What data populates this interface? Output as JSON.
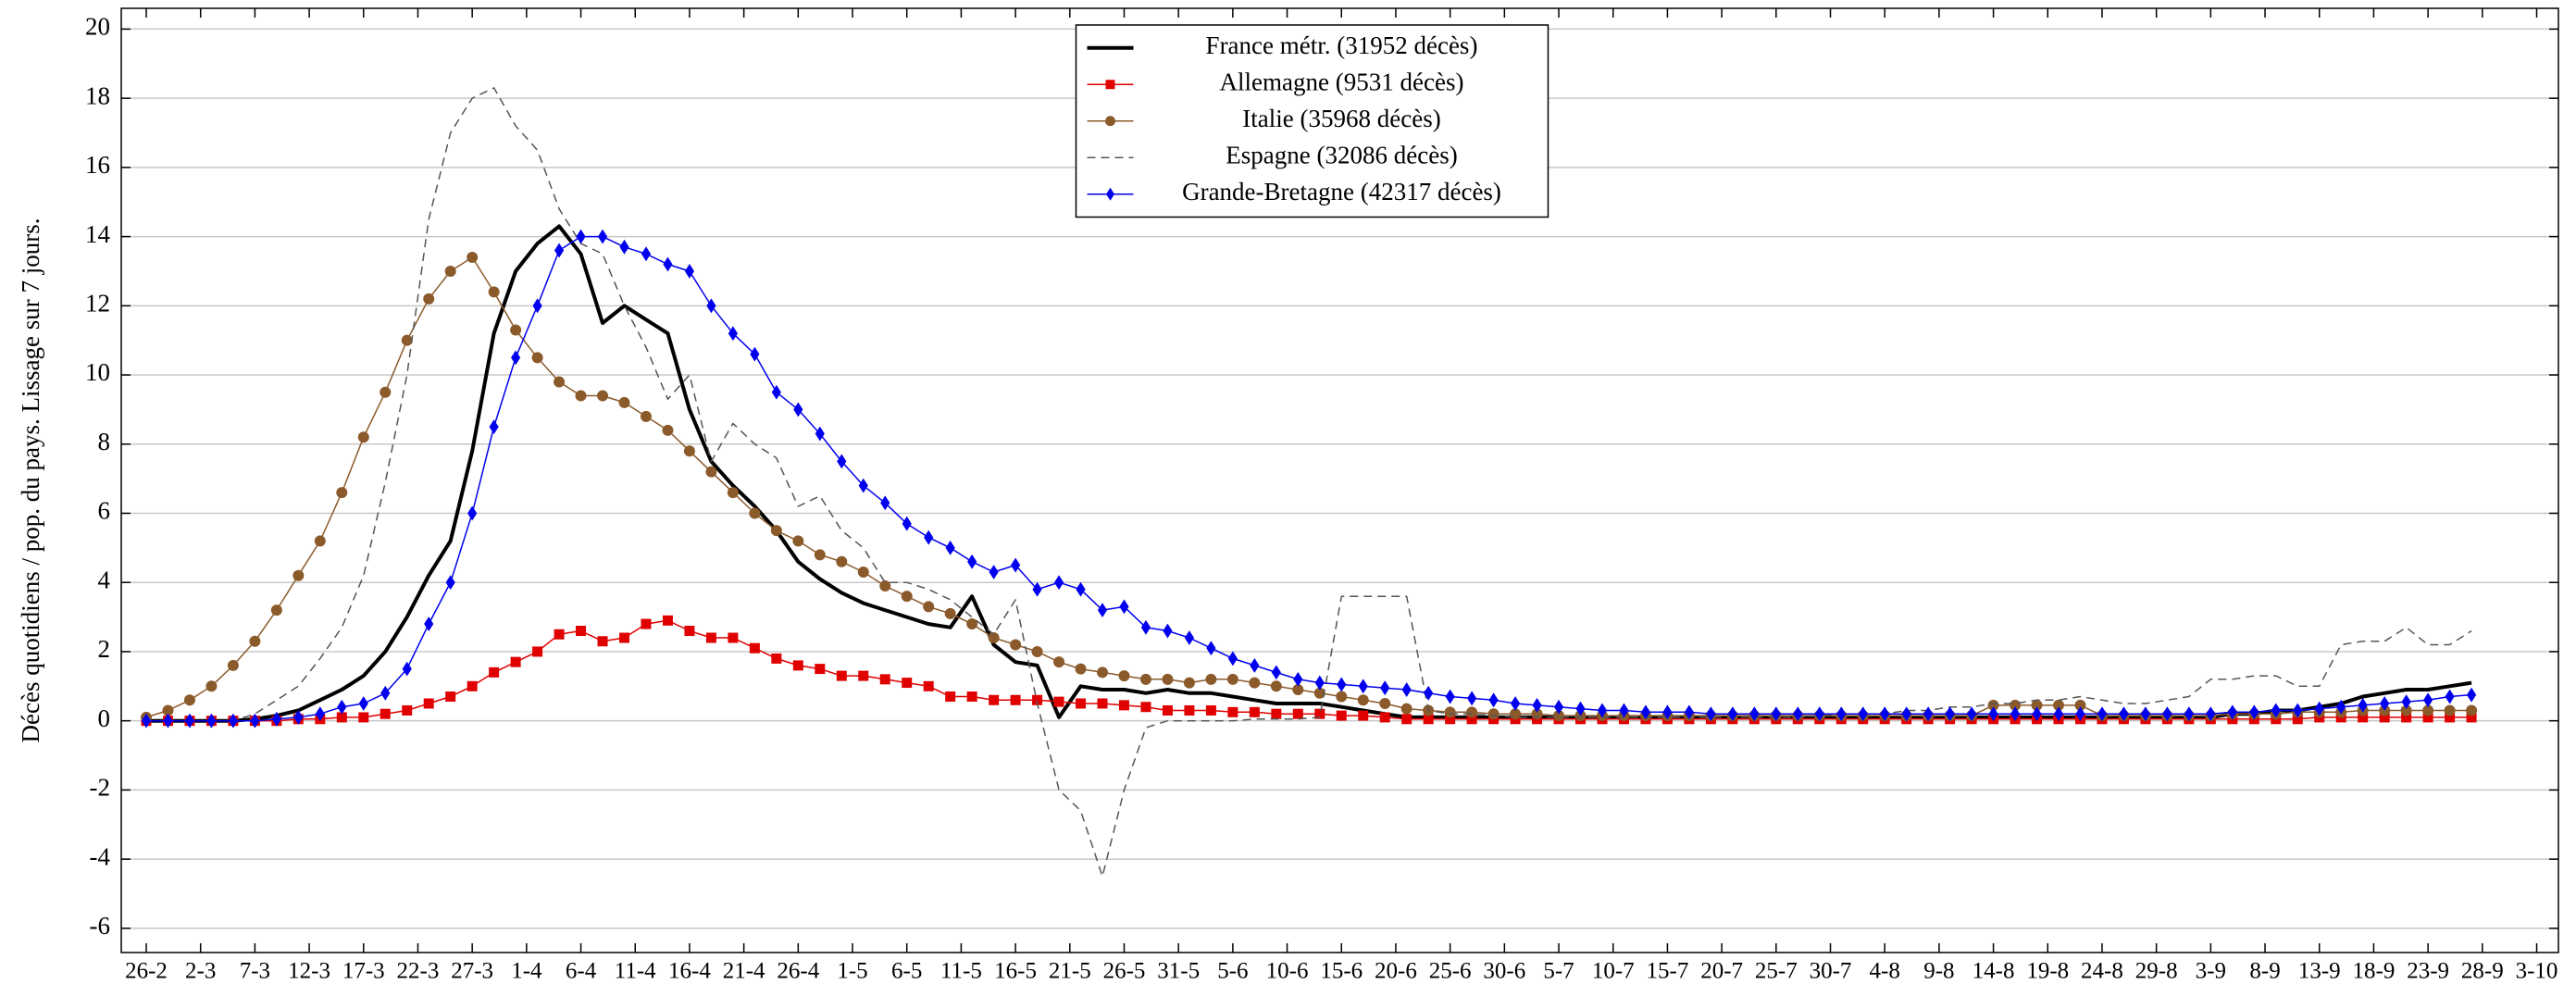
{
  "chart_data": {
    "type": "line",
    "y_label": "Décès quotidiens / pop. du pays. Lissage sur 7 jours.",
    "x": [
      0,
      2,
      4,
      6,
      8,
      10,
      12,
      14,
      16,
      18,
      20,
      22,
      24,
      26,
      28,
      30,
      32,
      34,
      36,
      38,
      40,
      42,
      44,
      46,
      48,
      50,
      52,
      54,
      56,
      58,
      60,
      62,
      64,
      66,
      68,
      70,
      72,
      74,
      76,
      78,
      80,
      82,
      84,
      86,
      88,
      90,
      92,
      94,
      96,
      98,
      100,
      102,
      104,
      106,
      108,
      110,
      112,
      114,
      116,
      118,
      120,
      122,
      124,
      126,
      128,
      130,
      132,
      134,
      136,
      138,
      140,
      142,
      144,
      146,
      148,
      150,
      152,
      154,
      156,
      158,
      160,
      162,
      164,
      166,
      168,
      170,
      172,
      174,
      176,
      178,
      180,
      182,
      184,
      186,
      188,
      190,
      192,
      194,
      196,
      198,
      200,
      202,
      204,
      206,
      208,
      210,
      212,
      214
    ],
    "series": [
      {
        "name": "France métr. (31952 décès)",
        "color": "#000000",
        "marker": "none",
        "line_style": "solid",
        "values": [
          0,
          0,
          0,
          0,
          0,
          0.05,
          0.15,
          0.3,
          0.6,
          0.9,
          1.3,
          2.0,
          3.0,
          4.2,
          5.2,
          7.8,
          11.2,
          13.0,
          13.8,
          14.3,
          13.5,
          11.5,
          12.0,
          11.6,
          11.2,
          9.0,
          7.5,
          6.8,
          6.2,
          5.5,
          4.6,
          4.1,
          3.7,
          3.4,
          3.2,
          3.0,
          2.8,
          2.7,
          3.6,
          2.2,
          1.7,
          1.6,
          0.1,
          1.0,
          0.9,
          0.9,
          0.8,
          0.9,
          0.8,
          0.8,
          0.7,
          0.6,
          0.5,
          0.5,
          0.5,
          0.4,
          0.3,
          0.2,
          0.1,
          0.1,
          0.1,
          0.1,
          0.1,
          0.1,
          0.1,
          0.1,
          0.1,
          0.1,
          0.1,
          0.1,
          0.1,
          0.1,
          0.1,
          0.1,
          0.1,
          0.1,
          0.1,
          0.1,
          0.1,
          0.1,
          0.1,
          0.1,
          0.1,
          0.1,
          0.1,
          0.1,
          0.1,
          0.1,
          0.1,
          0.1,
          0.1,
          0.1,
          0.1,
          0.1,
          0.1,
          0.1,
          0.2,
          0.2,
          0.3,
          0.3,
          0.4,
          0.5,
          0.7,
          0.8,
          0.9,
          0.9,
          1.0,
          1.1
        ]
      },
      {
        "name": "Allemagne (9531 décès)",
        "color": "#e00000",
        "marker": "square",
        "line_style": "solid",
        "values": [
          0,
          0,
          0,
          0,
          0,
          0,
          0,
          0.05,
          0.05,
          0.1,
          0.1,
          0.2,
          0.3,
          0.5,
          0.7,
          1.0,
          1.4,
          1.7,
          2.0,
          2.5,
          2.6,
          2.3,
          2.4,
          2.8,
          2.9,
          2.6,
          2.4,
          2.4,
          2.1,
          1.8,
          1.6,
          1.5,
          1.3,
          1.3,
          1.2,
          1.1,
          1.0,
          0.7,
          0.7,
          0.6,
          0.6,
          0.6,
          0.55,
          0.5,
          0.5,
          0.45,
          0.4,
          0.3,
          0.3,
          0.3,
          0.25,
          0.25,
          0.2,
          0.2,
          0.2,
          0.15,
          0.15,
          0.1,
          0.05,
          0.05,
          0.05,
          0.05,
          0.05,
          0.05,
          0.05,
          0.05,
          0.05,
          0.05,
          0.05,
          0.05,
          0.05,
          0.05,
          0.05,
          0.05,
          0.05,
          0.05,
          0.05,
          0.05,
          0.05,
          0.05,
          0.05,
          0.05,
          0.05,
          0.05,
          0.05,
          0.05,
          0.05,
          0.05,
          0.05,
          0.05,
          0.05,
          0.05,
          0.05,
          0.05,
          0.05,
          0.05,
          0.05,
          0.05,
          0.05,
          0.05,
          0.1,
          0.1,
          0.1,
          0.1,
          0.1,
          0.1,
          0.1,
          0.1
        ]
      },
      {
        "name": "Italie (35968 décès)",
        "color": "#8b5a2b",
        "marker": "circle",
        "line_style": "solid",
        "values": [
          0.1,
          0.3,
          0.6,
          1.0,
          1.6,
          2.3,
          3.2,
          4.2,
          5.2,
          6.6,
          8.2,
          9.5,
          11.0,
          12.2,
          13.0,
          13.4,
          12.4,
          11.3,
          10.5,
          9.8,
          9.4,
          9.4,
          9.2,
          8.8,
          8.4,
          7.8,
          7.2,
          6.6,
          6.0,
          5.5,
          5.2,
          4.8,
          4.6,
          4.3,
          3.9,
          3.6,
          3.3,
          3.1,
          2.8,
          2.4,
          2.2,
          2.0,
          1.7,
          1.5,
          1.4,
          1.3,
          1.2,
          1.2,
          1.1,
          1.2,
          1.2,
          1.1,
          1.0,
          0.9,
          0.8,
          0.7,
          0.6,
          0.5,
          0.35,
          0.3,
          0.25,
          0.25,
          0.2,
          0.2,
          0.2,
          0.15,
          0.15,
          0.15,
          0.15,
          0.15,
          0.15,
          0.15,
          0.15,
          0.15,
          0.15,
          0.15,
          0.15,
          0.15,
          0.15,
          0.15,
          0.15,
          0.15,
          0.15,
          0.15,
          0.15,
          0.45,
          0.45,
          0.45,
          0.45,
          0.45,
          0.15,
          0.15,
          0.15,
          0.15,
          0.15,
          0.15,
          0.2,
          0.2,
          0.2,
          0.25,
          0.25,
          0.25,
          0.3,
          0.3,
          0.3,
          0.3,
          0.3,
          0.3
        ]
      },
      {
        "name": "Espagne (32086 décès)",
        "color": "#555555",
        "marker": "none",
        "line_style": "dashed",
        "values": [
          0,
          0,
          0,
          0,
          0,
          0.2,
          0.6,
          1.0,
          1.8,
          2.7,
          4.2,
          6.9,
          10.0,
          14.5,
          17.0,
          18.0,
          18.3,
          17.2,
          16.5,
          14.8,
          13.8,
          13.5,
          12.0,
          10.8,
          9.3,
          10.0,
          7.5,
          8.6,
          8.0,
          7.6,
          6.2,
          6.5,
          5.5,
          5.0,
          4.0,
          4.0,
          3.8,
          3.5,
          3.0,
          2.5,
          3.5,
          0.5,
          -2.0,
          -2.6,
          -4.5,
          -2.0,
          -0.2,
          0,
          0,
          0,
          0,
          0.05,
          0.05,
          0.05,
          0.1,
          3.6,
          3.6,
          3.6,
          3.6,
          0.3,
          0.2,
          0.2,
          0.15,
          0.1,
          0.1,
          0.1,
          0.1,
          0.1,
          0.1,
          0.1,
          0.1,
          0.1,
          0.1,
          0.1,
          0.1,
          0.1,
          0.1,
          0.15,
          0.2,
          0.2,
          0.2,
          0.3,
          0.3,
          0.4,
          0.4,
          0.5,
          0.5,
          0.6,
          0.6,
          0.7,
          0.6,
          0.5,
          0.5,
          0.6,
          0.7,
          1.2,
          1.2,
          1.3,
          1.3,
          1.0,
          1.0,
          2.2,
          2.3,
          2.3,
          2.7,
          2.2,
          2.2,
          2.6
        ]
      },
      {
        "name": "Grande-Bretagne (42317 décès)",
        "color": "#0000ee",
        "marker": "diamond",
        "line_style": "solid",
        "values": [
          0,
          0,
          0,
          0,
          0,
          0,
          0.05,
          0.1,
          0.2,
          0.4,
          0.5,
          0.8,
          1.5,
          2.8,
          4.0,
          6.0,
          8.5,
          10.5,
          12.0,
          13.6,
          14.0,
          14.0,
          13.7,
          13.5,
          13.2,
          13.0,
          12.0,
          11.2,
          10.6,
          9.5,
          9.0,
          8.3,
          7.5,
          6.8,
          6.3,
          5.7,
          5.3,
          5.0,
          4.6,
          4.3,
          4.5,
          3.8,
          4.0,
          3.8,
          3.2,
          3.3,
          2.7,
          2.6,
          2.4,
          2.1,
          1.8,
          1.6,
          1.4,
          1.2,
          1.1,
          1.05,
          1.0,
          0.95,
          0.9,
          0.8,
          0.7,
          0.65,
          0.6,
          0.5,
          0.45,
          0.4,
          0.35,
          0.3,
          0.3,
          0.25,
          0.25,
          0.25,
          0.2,
          0.2,
          0.2,
          0.2,
          0.2,
          0.2,
          0.2,
          0.2,
          0.2,
          0.2,
          0.2,
          0.2,
          0.2,
          0.2,
          0.2,
          0.2,
          0.2,
          0.2,
          0.2,
          0.2,
          0.2,
          0.2,
          0.2,
          0.2,
          0.25,
          0.25,
          0.3,
          0.3,
          0.35,
          0.4,
          0.45,
          0.5,
          0.55,
          0.6,
          0.7,
          0.75
        ]
      }
    ],
    "xlim": [
      -2.3,
      222
    ],
    "xticks": [
      {
        "value": 0,
        "label": "26-2"
      },
      {
        "value": 5,
        "label": "2-3"
      },
      {
        "value": 10,
        "label": "7-3"
      },
      {
        "value": 15,
        "label": "12-3"
      },
      {
        "value": 20,
        "label": "17-3"
      },
      {
        "value": 25,
        "label": "22-3"
      },
      {
        "value": 30,
        "label": "27-3"
      },
      {
        "value": 35,
        "label": "1-4"
      },
      {
        "value": 40,
        "label": "6-4"
      },
      {
        "value": 45,
        "label": "11-4"
      },
      {
        "value": 50,
        "label": "16-4"
      },
      {
        "value": 55,
        "label": "21-4"
      },
      {
        "value": 60,
        "label": "26-4"
      },
      {
        "value": 65,
        "label": "1-5"
      },
      {
        "value": 70,
        "label": "6-5"
      },
      {
        "value": 75,
        "label": "11-5"
      },
      {
        "value": 80,
        "label": "16-5"
      },
      {
        "value": 85,
        "label": "21-5"
      },
      {
        "value": 90,
        "label": "26-5"
      },
      {
        "value": 95,
        "label": "31-5"
      },
      {
        "value": 100,
        "label": "5-6"
      },
      {
        "value": 105,
        "label": "10-6"
      },
      {
        "value": 110,
        "label": "15-6"
      },
      {
        "value": 115,
        "label": "20-6"
      },
      {
        "value": 120,
        "label": "25-6"
      },
      {
        "value": 125,
        "label": "30-6"
      },
      {
        "value": 130,
        "label": "5-7"
      },
      {
        "value": 135,
        "label": "10-7"
      },
      {
        "value": 140,
        "label": "15-7"
      },
      {
        "value": 145,
        "label": "20-7"
      },
      {
        "value": 150,
        "label": "25-7"
      },
      {
        "value": 155,
        "label": "30-7"
      },
      {
        "value": 160,
        "label": "4-8"
      },
      {
        "value": 165,
        "label": "9-8"
      },
      {
        "value": 170,
        "label": "14-8"
      },
      {
        "value": 175,
        "label": "19-8"
      },
      {
        "value": 180,
        "label": "24-8"
      },
      {
        "value": 185,
        "label": "29-8"
      },
      {
        "value": 190,
        "label": "3-9"
      },
      {
        "value": 195,
        "label": "8-9"
      },
      {
        "value": 200,
        "label": "13-9"
      },
      {
        "value": 205,
        "label": "18-9"
      },
      {
        "value": 210,
        "label": "23-9"
      },
      {
        "value": 215,
        "label": "28-9"
      },
      {
        "value": 220,
        "label": "3-10"
      }
    ],
    "ylim": [
      -6.7,
      20.6
    ],
    "yticks": [
      -6,
      -4,
      -2,
      0,
      2,
      4,
      6,
      8,
      10,
      12,
      14,
      16,
      18,
      20
    ],
    "grid": true,
    "legend": "upper center"
  }
}
